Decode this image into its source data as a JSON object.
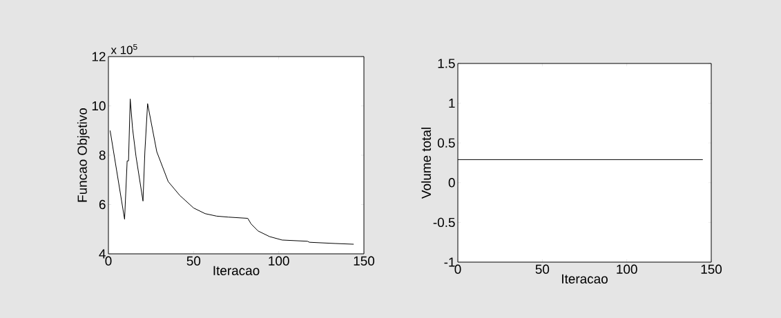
{
  "chart_data": [
    {
      "type": "line",
      "xlabel": "Iteracao",
      "ylabel": "Funcao Objetivo",
      "annotations": [
        "x 10$^{5}$"
      ],
      "color": "#000000",
      "x": [
        1,
        9.5,
        11,
        11.8,
        12.8,
        14.2,
        16.2,
        20.3,
        21.4,
        23,
        28.4,
        35.1,
        41.9,
        50,
        56.8,
        63.5,
        70.3,
        81.8,
        83.8,
        87.8,
        94.6,
        102,
        116.9,
        118,
        133,
        144
      ],
      "values": [
        9.0,
        5.4,
        7.77,
        7.77,
        10.28,
        9.07,
        7.95,
        6.14,
        8.14,
        10.09,
        8.14,
        6.93,
        6.37,
        5.86,
        5.63,
        5.53,
        5.49,
        5.44,
        5.21,
        4.93,
        4.7,
        4.56,
        4.51,
        4.47,
        4.42,
        4.39
      ],
      "xlim": [
        0,
        150
      ],
      "ylim": [
        4,
        12
      ],
      "xticks": [
        0,
        50,
        100,
        150
      ],
      "yticks": [
        4,
        6,
        8,
        10,
        12
      ]
    },
    {
      "type": "line",
      "xlabel": "Iteracao",
      "ylabel": "Volume total",
      "color": "#000000",
      "x": [
        0,
        145
      ],
      "values": [
        0.29,
        0.29
      ],
      "xlim": [
        0,
        150
      ],
      "ylim": [
        -1,
        1.5
      ],
      "xticks": [
        0,
        50,
        100,
        150
      ],
      "yticks": [
        -1,
        -0.5,
        0,
        0.5,
        1,
        1.5
      ]
    }
  ]
}
